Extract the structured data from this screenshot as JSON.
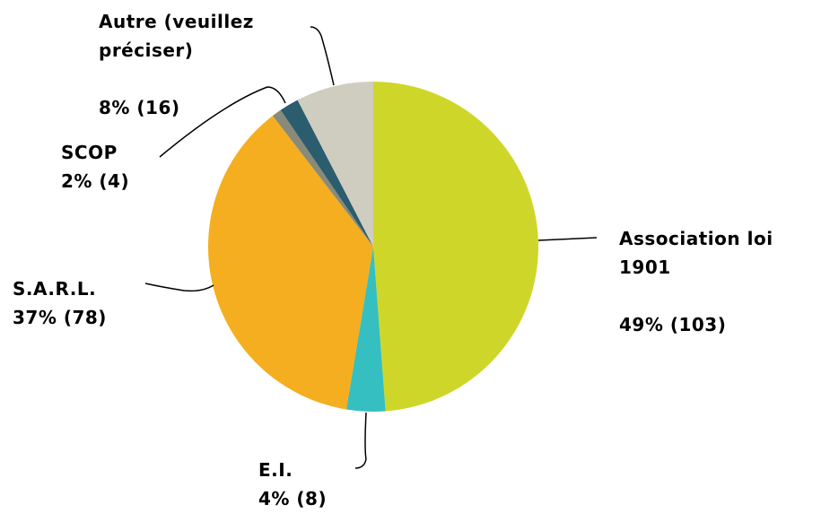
{
  "chart_data": {
    "type": "pie",
    "categories": [
      "Association loi 1901",
      "E.I.",
      "S.A.R.L.",
      null,
      "SCOP",
      "Autre (veuillez préciser)"
    ],
    "values": [
      103,
      8,
      78,
      2,
      4,
      16
    ],
    "value_labels": [
      "49% (103)",
      "4% (8)",
      "37% (78)",
      null,
      "2% (4)",
      "8% (16)"
    ],
    "colors": [
      "#cfd62a",
      "#35bfc0",
      "#f5ae1f",
      "#8a8a78",
      "#2b5d6e",
      "#cfcdbf"
    ]
  }
}
